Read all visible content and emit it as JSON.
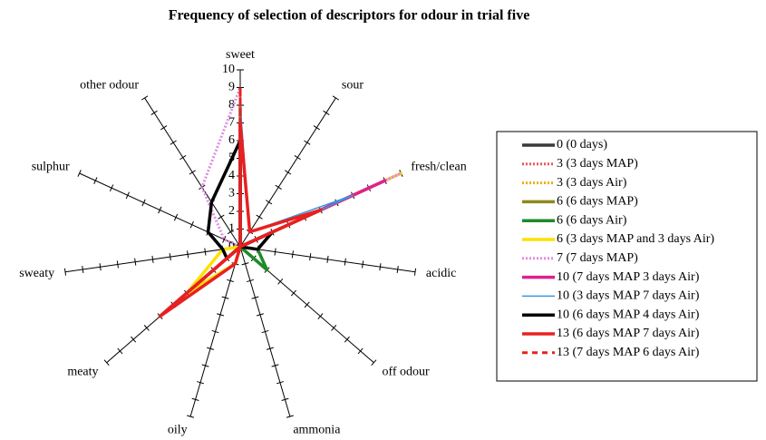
{
  "chart_data": {
    "type": "radar",
    "title": "Frequency of selection of descriptors for odour in trial five",
    "categories": [
      "sweet",
      "sour",
      "fresh/clean",
      "acidic",
      "off odour",
      "ammonia",
      "oily",
      "meaty",
      "sweaty",
      "sulphur",
      "other odour"
    ],
    "rlim": [
      0,
      10
    ],
    "rticks": [
      0,
      1,
      2,
      3,
      4,
      5,
      6,
      7,
      8,
      9,
      10
    ],
    "series": [
      {
        "name": "0 (0 days)",
        "color": "#3a3a3a",
        "line_style": "solid",
        "values": [
          7,
          0,
          1,
          0,
          0,
          0,
          0,
          6,
          0,
          0,
          0
        ]
      },
      {
        "name": "3 (3 days MAP)",
        "color": "#e85a5a",
        "line_style": "dotted",
        "values": [
          5,
          0,
          1,
          0,
          0,
          0,
          0,
          6,
          0,
          0,
          0
        ]
      },
      {
        "name": "3 (3 days Air)",
        "color": "#e6b000",
        "line_style": "dotted",
        "values": [
          4,
          0,
          9,
          0,
          0,
          0,
          0,
          5,
          0,
          0,
          0
        ]
      },
      {
        "name": "6 (6 days MAP)",
        "color": "#8c8a1e",
        "line_style": "solid",
        "values": [
          6,
          0,
          8,
          0,
          0,
          0,
          0,
          6,
          0,
          0,
          0
        ]
      },
      {
        "name": "6 (6 days Air)",
        "color": "#1f8a2a",
        "line_style": "solid",
        "values": [
          8,
          0,
          2,
          1,
          2,
          0,
          0,
          1,
          0,
          0,
          0
        ]
      },
      {
        "name": "6 (3 days MAP and 3 days Air)",
        "color": "#ffe000",
        "line_style": "solid",
        "values": [
          5,
          0,
          10,
          0,
          0,
          0,
          1,
          4,
          1,
          0,
          0
        ]
      },
      {
        "name": "7 (7 days MAP)",
        "color": "#e08ee0",
        "line_style": "dotted",
        "values": [
          9,
          0,
          10,
          0,
          0,
          0,
          0,
          6,
          0,
          1,
          4
        ]
      },
      {
        "name": "10 (7 days MAP 3 days Air)",
        "color": "#e0208f",
        "line_style": "solid",
        "values": [
          7,
          0,
          9,
          0,
          0,
          0,
          0,
          6,
          0,
          0,
          0
        ]
      },
      {
        "name": "10 (3 days MAP 7 days Air)",
        "color": "#3a96e0",
        "line_style": "thin",
        "values": [
          8,
          1,
          7,
          0,
          0,
          0,
          0,
          5,
          0,
          0,
          0
        ]
      },
      {
        "name": "10 (6 days MAP 4 days Air)",
        "color": "#000000",
        "line_style": "solid",
        "values": [
          6,
          0,
          2,
          1,
          0,
          0,
          0,
          1,
          1,
          2,
          3
        ]
      },
      {
        "name": "13 (6 days MAP 7 days Air)",
        "color": "#e82020",
        "line_style": "solid",
        "values": [
          7,
          1,
          5,
          0,
          0,
          0,
          1,
          6,
          0,
          0,
          0
        ]
      },
      {
        "name": "13 (7 days MAP 6 days Air)",
        "color": "#e82020",
        "line_style": "dashed",
        "values": [
          9,
          0,
          5,
          0,
          0,
          0,
          0,
          6,
          0,
          0,
          0
        ]
      }
    ]
  }
}
